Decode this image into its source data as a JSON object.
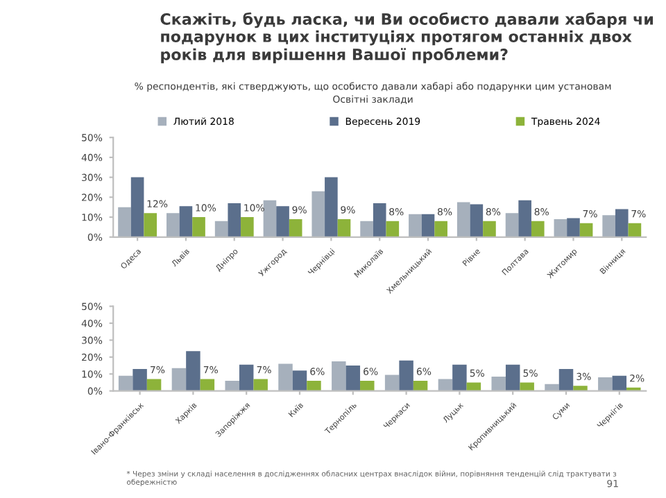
{
  "chart_data": [
    {
      "type": "bar",
      "title": "Скажіть, будь ласка, чи Ви особисто давали хабаря чи подарунок в цих інституціях протягом останніх двох років для вирішення Вашої проблеми?",
      "subtitle": "% респондентів, які стверджують, що особисто давали хабарі або подарунки цим установам\nОсвітні заклади",
      "categories": [
        "Одеса",
        "Львів",
        "Дніпро",
        "Ужгород",
        "Чернівці",
        "Миколаїв",
        "Хмельницький",
        "Рівне",
        "Полтава",
        "Житомир",
        "Вінниця"
      ],
      "series": [
        {
          "name": "Лютий 2018",
          "color": "#a6b0bc",
          "values": [
            15,
            12,
            8,
            18.5,
            23,
            8,
            11.5,
            17.5,
            12,
            9,
            11
          ]
        },
        {
          "name": "Вересень 2019",
          "color": "#5b6f8c",
          "values": [
            30,
            15.5,
            17,
            15.5,
            30,
            17,
            11.5,
            16.5,
            18.5,
            9.5,
            14
          ]
        },
        {
          "name": "Травень 2024",
          "color": "#8db33a",
          "values": [
            12,
            10,
            10,
            9,
            9,
            8,
            8,
            8,
            8,
            7,
            7
          ],
          "value_labels": [
            "12%",
            "10%",
            "10%",
            "9%",
            "9%",
            "8%",
            "8%",
            "8%",
            "8%",
            "7%",
            "7%"
          ]
        }
      ],
      "ylim": [
        0,
        50
      ],
      "yticks": [
        {
          "value": 0,
          "label": "0%"
        },
        {
          "value": 10,
          "label": "10%"
        },
        {
          "value": 20,
          "label": "20%"
        },
        {
          "value": 30,
          "label": "30%"
        },
        {
          "value": 40,
          "label": "40%"
        },
        {
          "value": 50,
          "label": "50%"
        }
      ],
      "legend": "top",
      "grid": false
    },
    {
      "type": "bar",
      "categories": [
        "Івано-Франківськ",
        "Харків",
        "Запоріжжя",
        "Київ",
        "Тернопіль",
        "Черкаси",
        "Луцьк",
        "Кропивницький",
        "Суми",
        "Чернігів"
      ],
      "series": [
        {
          "color": "#a6b0bc",
          "values": [
            9,
            13.5,
            6,
            16,
            17.5,
            9.5,
            7,
            8.5,
            4,
            8
          ]
        },
        {
          "color": "#5b6f8c",
          "values": [
            13,
            23.5,
            15.5,
            12,
            15,
            18,
            15.5,
            15.5,
            13,
            9
          ]
        },
        {
          "color": "#8db33a",
          "values": [
            7,
            7,
            7,
            6,
            6,
            6,
            5,
            5,
            3,
            2
          ],
          "value_labels": [
            "7%",
            "7%",
            "7%",
            "6%",
            "6%",
            "6%",
            "5%",
            "5%",
            "3%",
            "2%"
          ]
        }
      ],
      "ylim": [
        0,
        50
      ],
      "yticks": [
        {
          "value": 0,
          "label": "0%"
        },
        {
          "value": 10,
          "label": "10%"
        },
        {
          "value": 20,
          "label": "20%"
        },
        {
          "value": 30,
          "label": "30%"
        },
        {
          "value": 40,
          "label": "40%"
        },
        {
          "value": 50,
          "label": "50%"
        }
      ],
      "grid": false,
      "annotations": [
        "* Через зміни у складі населення в дослідженнях обласних центрах внаслідок війни, порівняння тенденцій слід трактувати з обережністю",
        "91"
      ]
    }
  ]
}
